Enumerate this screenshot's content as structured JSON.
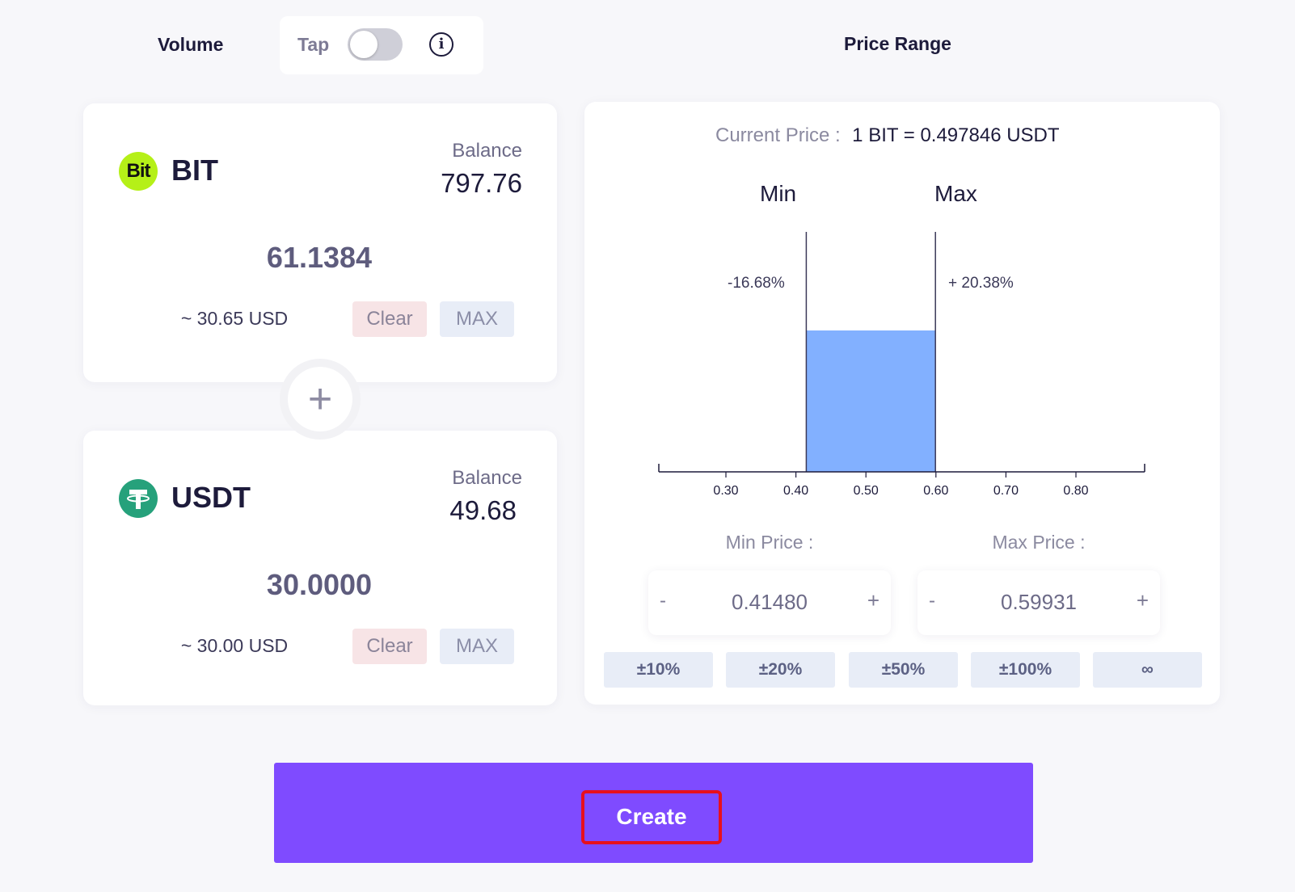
{
  "header": {
    "volume_title": "Volume",
    "tap_label": "Tap",
    "tap_enabled": false,
    "info_symbol": "i",
    "price_range_title": "Price Range"
  },
  "tokens": [
    {
      "symbol": "BIT",
      "logo_text": "Bit",
      "logo_color": "#b5f018",
      "balance_label": "Balance",
      "balance": "797.76",
      "amount": "61.1384",
      "usd_value": "~ 30.65 USD",
      "clear_label": "Clear",
      "max_label": "MAX"
    },
    {
      "symbol": "USDT",
      "logo_text": "T",
      "logo_color": "#26a17b",
      "balance_label": "Balance",
      "balance": "49.68",
      "amount": "30.0000",
      "usd_value": "~ 30.00 USD",
      "clear_label": "Clear",
      "max_label": "MAX"
    }
  ],
  "plus_symbol": "+",
  "price_panel": {
    "current_price_label": "Current Price :",
    "current_price_value": "1 BIT = 0.497846 USDT",
    "min_label": "Min",
    "max_label": "Max",
    "min_pct": "-16.68%",
    "max_pct": "+ 20.38%",
    "min_price_label": "Min Price :",
    "max_price_label": "Max Price :",
    "min_price": "0.41480",
    "max_price": "0.59931",
    "minus_symbol": "-",
    "plus_symbol": "+",
    "range_buttons": [
      "±10%",
      "±20%",
      "±50%",
      "±100%",
      "∞"
    ]
  },
  "chart_data": {
    "type": "area",
    "x_ticks": [
      "0.30",
      "0.40",
      "0.50",
      "0.60",
      "0.70",
      "0.80"
    ],
    "xlim": [
      0.2,
      0.9
    ],
    "range_min": 0.4148,
    "range_max": 0.59931,
    "range_color": "#82b0ff"
  },
  "actions": {
    "create_label": "Create",
    "create_color": "#7f4bff"
  }
}
